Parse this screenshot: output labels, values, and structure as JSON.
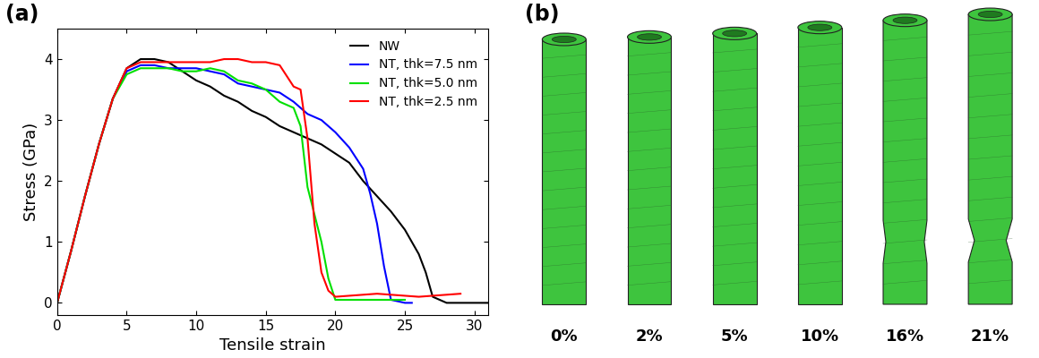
{
  "chart_data": {
    "type": "line",
    "title": "(a)",
    "x_label": "Tensile strain",
    "y_label": "Stress (GPa)",
    "xlim": [
      0,
      31
    ],
    "ylim": [
      -0.2,
      4.5
    ],
    "xticks": [
      0,
      5,
      10,
      15,
      20,
      25,
      30
    ],
    "yticks": [
      0,
      1,
      2,
      3,
      4
    ],
    "legend": "upper right",
    "series": [
      {
        "name": "NW",
        "color": "#000000",
        "x": [
          0,
          1,
          2,
          3,
          4,
          5,
          6,
          7,
          8,
          9,
          10,
          11,
          12,
          13,
          14,
          15,
          16,
          17,
          18,
          19,
          20,
          21,
          22,
          23,
          24,
          25,
          26,
          26.5,
          27,
          28,
          30,
          31
        ],
        "values": [
          0,
          0.85,
          1.75,
          2.6,
          3.35,
          3.85,
          4.0,
          4.0,
          3.95,
          3.8,
          3.65,
          3.55,
          3.4,
          3.3,
          3.15,
          3.05,
          2.9,
          2.8,
          2.7,
          2.6,
          2.45,
          2.3,
          2.0,
          1.75,
          1.5,
          1.2,
          0.8,
          0.5,
          0.1,
          0.0,
          0.0,
          0.0
        ]
      },
      {
        "name": "NT, thk=7.5 nm",
        "color": "#0000ff",
        "x": [
          0,
          1,
          2,
          3,
          4,
          5,
          6,
          7,
          8,
          9,
          10,
          11,
          12,
          13,
          14,
          15,
          16,
          17,
          18,
          19,
          20,
          21,
          22,
          22.5,
          23,
          23.5,
          24,
          25,
          25.5
        ],
        "values": [
          0,
          0.85,
          1.75,
          2.6,
          3.35,
          3.8,
          3.9,
          3.9,
          3.85,
          3.85,
          3.85,
          3.8,
          3.75,
          3.6,
          3.55,
          3.5,
          3.45,
          3.3,
          3.1,
          3.0,
          2.8,
          2.55,
          2.2,
          1.8,
          1.3,
          0.6,
          0.05,
          0.0,
          0.0
        ]
      },
      {
        "name": "NT, thk=5.0 nm",
        "color": "#00e000",
        "x": [
          0,
          1,
          2,
          3,
          4,
          5,
          6,
          7,
          8,
          9,
          10,
          11,
          12,
          13,
          14,
          15,
          16,
          17,
          17.5,
          18,
          19,
          19.5,
          20,
          22,
          25
        ],
        "values": [
          0,
          0.85,
          1.75,
          2.6,
          3.35,
          3.75,
          3.85,
          3.85,
          3.85,
          3.8,
          3.8,
          3.85,
          3.8,
          3.65,
          3.6,
          3.5,
          3.3,
          3.2,
          2.9,
          1.9,
          1.0,
          0.4,
          0.05,
          0.05,
          0.05
        ]
      },
      {
        "name": "NT, thk=2.5 nm",
        "color": "#ff0000",
        "x": [
          0,
          1,
          2,
          3,
          4,
          5,
          6,
          7,
          8,
          9,
          10,
          11,
          12,
          13,
          14,
          15,
          16,
          17,
          17.5,
          18,
          18.5,
          19,
          19.5,
          20,
          23,
          26,
          29
        ],
        "values": [
          0,
          0.85,
          1.75,
          2.6,
          3.35,
          3.85,
          3.95,
          3.95,
          3.95,
          3.95,
          3.95,
          3.95,
          4.0,
          4.0,
          3.95,
          3.95,
          3.9,
          3.55,
          3.5,
          2.7,
          1.3,
          0.5,
          0.2,
          0.1,
          0.15,
          0.1,
          0.15
        ]
      }
    ]
  },
  "diagram": {
    "title": "(b)",
    "labels": [
      "0%",
      "2%",
      "5%",
      "10%",
      "16%",
      "21%"
    ]
  }
}
